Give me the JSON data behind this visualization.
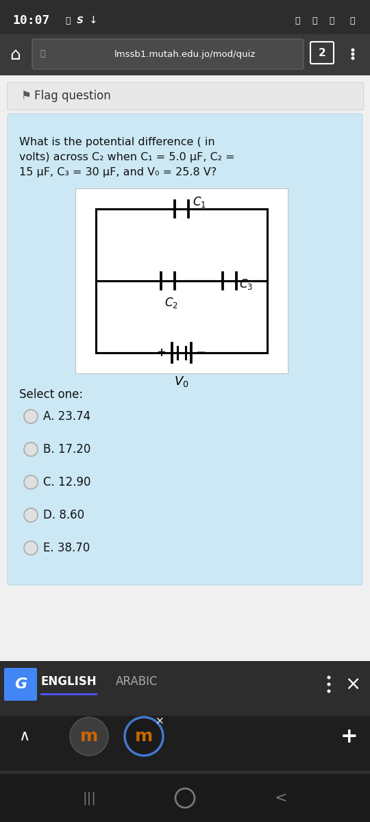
{
  "bg_color": "#2d2d2d",
  "nav_bg": "#3a3a3a",
  "page_bg": "#f0f0f0",
  "card_bg": "#cce8f4",
  "flag_bar_bg": "#e0e0e0",
  "status_time": "10:07",
  "url_text": "lmssb1.mutah.edu.jo/mod/quiz",
  "flag_text": "Flag question",
  "question_text_line1": "What is the potential difference ( in",
  "question_text_line2": "volts) across C₂ when C₁ = 5.0 μF, C₂ =",
  "question_text_line3": "15 μF, C₃ = 30 μF, and V₀ = 25.8 V?",
  "select_one": "Select one:",
  "options": [
    "A. 23.74",
    "B. 17.20",
    "C. 12.90",
    "D. 8.60",
    "E. 38.70"
  ],
  "english_label": "ENGLISH",
  "arabic_label": "ARABIC",
  "circuit_bg": "#ffffff"
}
